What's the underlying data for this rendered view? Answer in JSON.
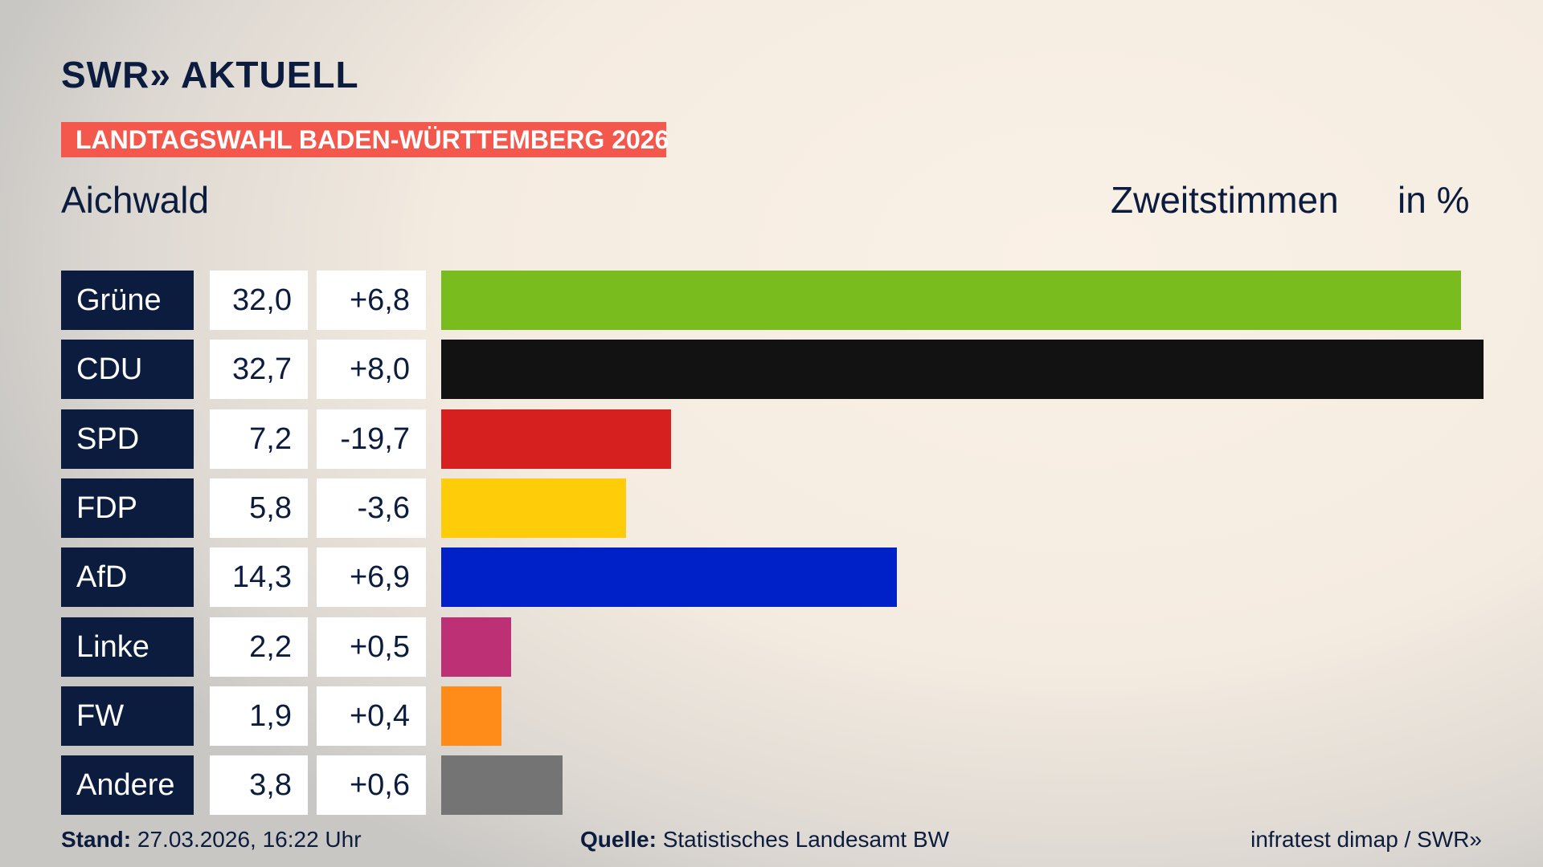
{
  "header": {
    "logo": "SWR» AKTUELL",
    "banner": "LANDTAGSWAHL BADEN-WÜRTTEMBERG 2026",
    "place": "Aichwald",
    "measure": "Zweitstimmen",
    "unit": "in %"
  },
  "chart_data": {
    "type": "bar",
    "orientation": "horizontal",
    "categories": [
      "Grüne",
      "CDU",
      "SPD",
      "FDP",
      "AfD",
      "Linke",
      "FW",
      "Andere"
    ],
    "values": [
      32.0,
      32.7,
      7.2,
      5.8,
      14.3,
      2.2,
      1.9,
      3.8
    ],
    "value_labels": [
      "32,0",
      "32,7",
      "7,2",
      "5,8",
      "14,3",
      "2,2",
      "1,9",
      "3,8"
    ],
    "changes": [
      "+6,8",
      "+8,0",
      "-19,7",
      "-3,6",
      "+6,9",
      "+0,5",
      "+0,4",
      "+0,6"
    ],
    "colors": [
      "#78bc1e",
      "#121212",
      "#d6201f",
      "#ffcc0a",
      "#0021c8",
      "#bd3075",
      "#ff8c19",
      "#747474"
    ]
  },
  "footer": {
    "stand_label": "Stand:",
    "stand": "27.03.2026, 16:22 Uhr",
    "source_label": "Quelle:",
    "source": "Statistisches Landesamt BW",
    "credit": "infratest dimap / SWR»"
  }
}
